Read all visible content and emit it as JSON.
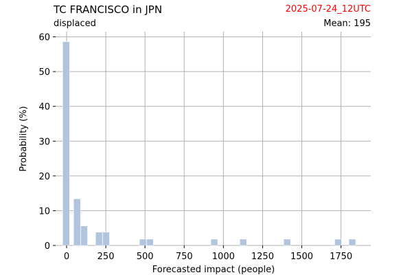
{
  "header": {
    "title": "TC FRANCISCO in JPN",
    "subtitle": "displaced",
    "date": "2025-07-24_12UTC",
    "mean": "Mean: 195"
  },
  "colors": {
    "bar": "#b0c4de",
    "grid": "#b0b0b0",
    "date": "#ff0000"
  },
  "chart_data": {
    "type": "bar",
    "title": "TC FRANCISCO in JPN",
    "subtitle": "displaced",
    "xlabel": "Forecasted impact (people)",
    "ylabel": "Probability (%)",
    "xlim": [
      -70,
      1940
    ],
    "ylim": [
      0,
      61.5
    ],
    "xticks": [
      0,
      250,
      500,
      750,
      1000,
      1250,
      1500,
      1750
    ],
    "yticks": [
      0,
      10,
      20,
      30,
      40,
      50,
      60
    ],
    "bin_width": 50,
    "grid": true,
    "bars": [
      {
        "x": 0,
        "value": 58.6
      },
      {
        "x": 70,
        "value": 13.4
      },
      {
        "x": 115,
        "value": 5.6
      },
      {
        "x": 210,
        "value": 3.8
      },
      {
        "x": 255,
        "value": 3.8
      },
      {
        "x": 490,
        "value": 1.8
      },
      {
        "x": 535,
        "value": 1.8
      },
      {
        "x": 945,
        "value": 1.8
      },
      {
        "x": 1130,
        "value": 1.8
      },
      {
        "x": 1410,
        "value": 1.8
      },
      {
        "x": 1735,
        "value": 1.8
      },
      {
        "x": 1825,
        "value": 1.8
      }
    ]
  }
}
